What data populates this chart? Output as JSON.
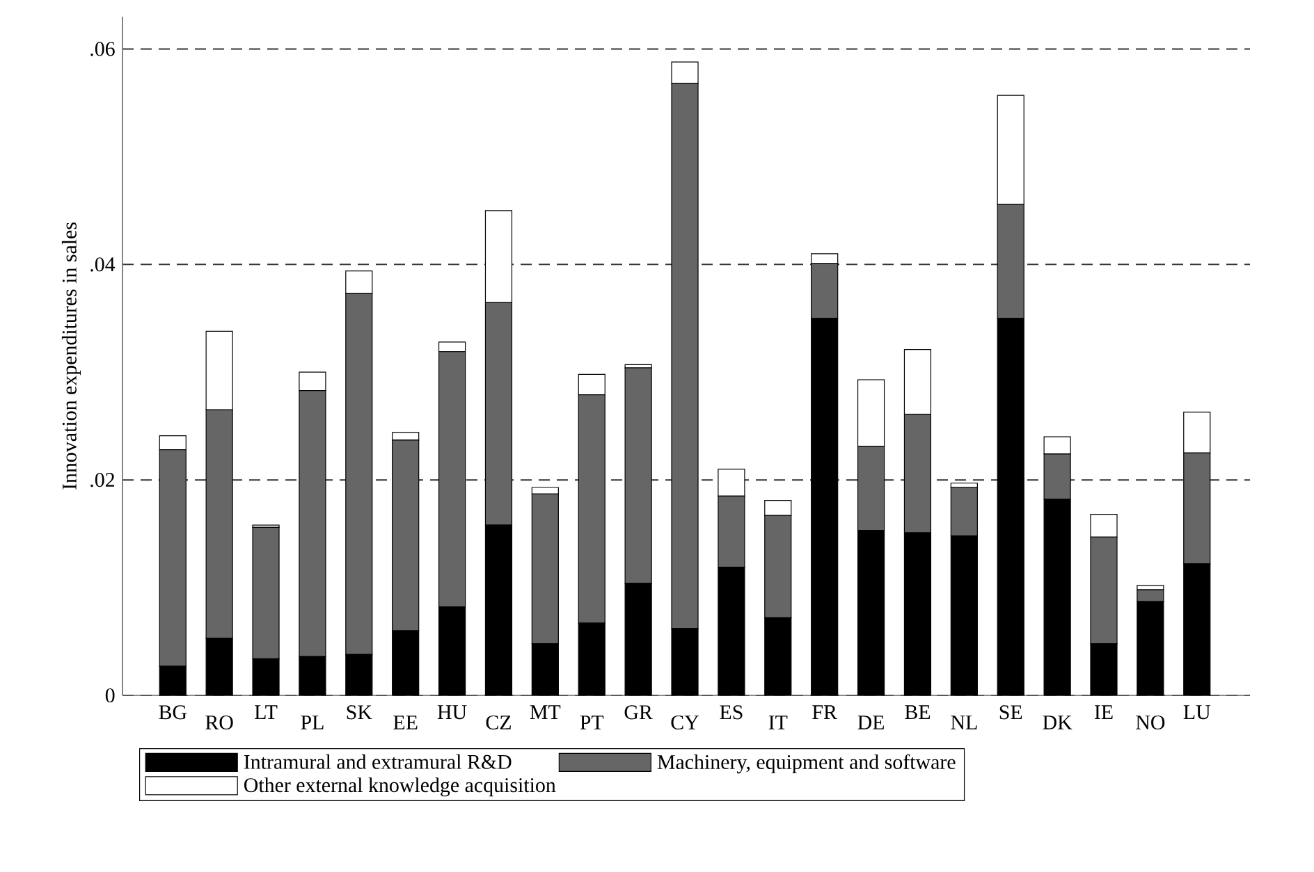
{
  "chart_data": {
    "type": "bar",
    "stacked": true,
    "ylabel": "Innovation expenditures in sales",
    "categories": [
      "BG",
      "RO",
      "LT",
      "PL",
      "SK",
      "EE",
      "HU",
      "CZ",
      "MT",
      "PT",
      "GR",
      "CY",
      "ES",
      "IT",
      "FR",
      "DE",
      "BE",
      "NL",
      "SE",
      "DK",
      "IE",
      "NO",
      "LU"
    ],
    "series": [
      {
        "name": "Intramural and extramural R&D",
        "color": "#000000",
        "values": [
          0.0027,
          0.0053,
          0.0034,
          0.0036,
          0.0038,
          0.006,
          0.0082,
          0.0158,
          0.0048,
          0.0067,
          0.0104,
          0.0062,
          0.0119,
          0.0072,
          0.035,
          0.0153,
          0.0151,
          0.0148,
          0.035,
          0.0182,
          0.0048,
          0.0087,
          0.0122
        ]
      },
      {
        "name": "Machinery, equipment and software",
        "color": "#666666",
        "values": [
          0.0201,
          0.0212,
          0.0122,
          0.0247,
          0.0335,
          0.0177,
          0.0237,
          0.0207,
          0.0139,
          0.0212,
          0.02,
          0.0506,
          0.0066,
          0.0095,
          0.0051,
          0.0078,
          0.011,
          0.0045,
          0.0106,
          0.0042,
          0.0099,
          0.0011,
          0.0103
        ]
      },
      {
        "name": "Other external knowledge acquisition",
        "color": "#ffffff",
        "values": [
          0.0013,
          0.0073,
          0.0002,
          0.0017,
          0.0021,
          0.0007,
          0.0009,
          0.0085,
          0.0006,
          0.0019,
          0.0003,
          0.002,
          0.0025,
          0.0014,
          0.0009,
          0.0062,
          0.006,
          0.0004,
          0.0101,
          0.0016,
          0.0021,
          0.0004,
          0.0038
        ]
      }
    ],
    "ylim": [
      0,
      0.063
    ],
    "yticks": [
      0,
      {
        "value": 0.02,
        "label": ".02"
      },
      {
        "value": 0.04,
        "label": ".04"
      },
      {
        "value": 0.06,
        "label": ".06"
      }
    ],
    "grid": "y",
    "legend": "bottom"
  }
}
